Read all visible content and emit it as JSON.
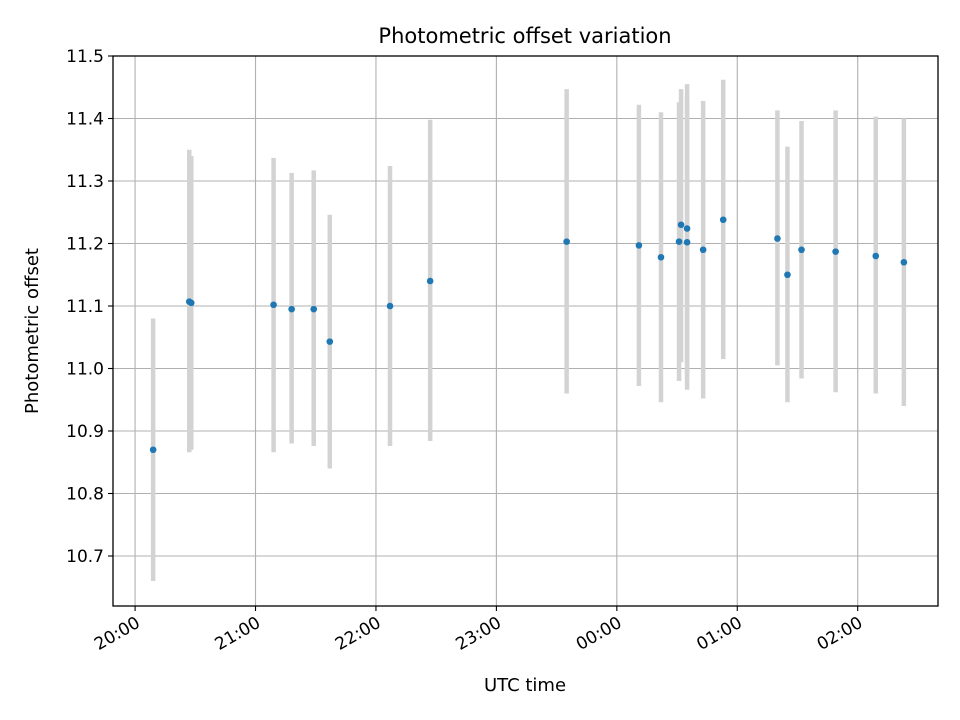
{
  "chart_data": {
    "type": "scatter",
    "title": "Photometric offset variation",
    "xlabel": "UTC time",
    "ylabel": "Photometric offset",
    "x_ticks": [
      "20:00",
      "21:00",
      "22:00",
      "23:00",
      "00:00",
      "01:00",
      "02:00"
    ],
    "x_range": [
      "19:49",
      "02:40"
    ],
    "y_ticks": [
      "10.7",
      "10.8",
      "10.9",
      "11.0",
      "11.1",
      "11.2",
      "11.3",
      "11.4",
      "11.5"
    ],
    "ylim": [
      10.62,
      11.5
    ],
    "grid": true,
    "marker_color": "#1f77b4",
    "errorbar_color": "#d3d3d3",
    "points": [
      {
        "time": "20:09",
        "offset": 10.87,
        "err_low": 10.66,
        "err_high": 11.08
      },
      {
        "time": "20:27",
        "offset": 11.107,
        "err_low": 10.866,
        "err_high": 11.35
      },
      {
        "time": "20:28",
        "offset": 11.105,
        "err_low": 10.87,
        "err_high": 11.34
      },
      {
        "time": "21:09",
        "offset": 11.102,
        "err_low": 10.866,
        "err_high": 11.337
      },
      {
        "time": "21:18",
        "offset": 11.095,
        "err_low": 10.88,
        "err_high": 11.313
      },
      {
        "time": "21:29",
        "offset": 11.095,
        "err_low": 10.876,
        "err_high": 11.317
      },
      {
        "time": "21:37",
        "offset": 11.043,
        "err_low": 10.84,
        "err_high": 11.246
      },
      {
        "time": "22:07",
        "offset": 11.1,
        "err_low": 10.876,
        "err_high": 11.324
      },
      {
        "time": "22:27",
        "offset": 11.14,
        "err_low": 10.884,
        "err_high": 11.398
      },
      {
        "time": "23:35",
        "offset": 11.203,
        "err_low": 10.96,
        "err_high": 11.447
      },
      {
        "time": "00:11",
        "offset": 11.197,
        "err_low": 10.972,
        "err_high": 11.422
      },
      {
        "time": "00:22",
        "offset": 11.178,
        "err_low": 10.946,
        "err_high": 11.41
      },
      {
        "time": "00:31",
        "offset": 11.203,
        "err_low": 10.98,
        "err_high": 11.426
      },
      {
        "time": "00:32",
        "offset": 11.23,
        "err_low": 11.01,
        "err_high": 11.447
      },
      {
        "time": "00:35",
        "offset": 11.224,
        "err_low": 10.99,
        "err_high": 11.455
      },
      {
        "time": "00:35",
        "offset": 11.202,
        "err_low": 10.966,
        "err_high": 11.435
      },
      {
        "time": "00:43",
        "offset": 11.19,
        "err_low": 10.952,
        "err_high": 11.428
      },
      {
        "time": "00:53",
        "offset": 11.238,
        "err_low": 11.015,
        "err_high": 11.462
      },
      {
        "time": "01:20",
        "offset": 11.208,
        "err_low": 11.005,
        "err_high": 11.413
      },
      {
        "time": "01:25",
        "offset": 11.15,
        "err_low": 10.946,
        "err_high": 11.355
      },
      {
        "time": "01:32",
        "offset": 11.19,
        "err_low": 10.984,
        "err_high": 11.396
      },
      {
        "time": "01:49",
        "offset": 11.187,
        "err_low": 10.962,
        "err_high": 11.413
      },
      {
        "time": "02:09",
        "offset": 11.18,
        "err_low": 10.96,
        "err_high": 11.403
      },
      {
        "time": "02:23",
        "offset": 11.17,
        "err_low": 10.94,
        "err_high": 11.4
      }
    ]
  }
}
